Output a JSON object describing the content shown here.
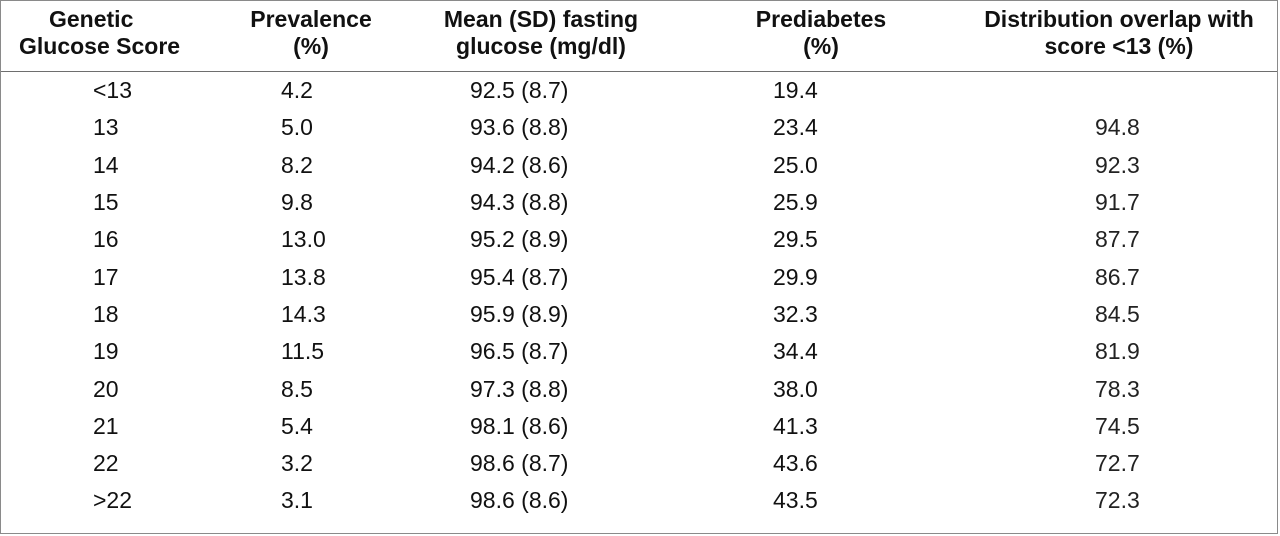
{
  "table": {
    "headers": {
      "score_line1": "Genetic",
      "score_line2": "Glucose Score",
      "prevalence_line1": "Prevalence",
      "prevalence_line2": "(%)",
      "mean_line1": "Mean (SD) fasting",
      "mean_line2": "glucose (mg/dl)",
      "prediabetes_line1": "Prediabetes",
      "prediabetes_line2": "(%)",
      "overlap_line1": "Distribution overlap with",
      "overlap_line2": "score <13 (%)"
    },
    "rows": [
      {
        "score": "<13",
        "prevalence": "4.2",
        "mean": "92.5 (8.7)",
        "prediabetes": "19.4",
        "overlap": ""
      },
      {
        "score": "13",
        "prevalence": "5.0",
        "mean": "93.6 (8.8)",
        "prediabetes": "23.4",
        "overlap": "94.8"
      },
      {
        "score": "14",
        "prevalence": "8.2",
        "mean": "94.2 (8.6)",
        "prediabetes": "25.0",
        "overlap": "92.3"
      },
      {
        "score": "15",
        "prevalence": "9.8",
        "mean": "94.3 (8.8)",
        "prediabetes": "25.9",
        "overlap": "91.7"
      },
      {
        "score": "16",
        "prevalence": "13.0",
        "mean": "95.2 (8.9)",
        "prediabetes": "29.5",
        "overlap": "87.7"
      },
      {
        "score": "17",
        "prevalence": "13.8",
        "mean": "95.4 (8.7)",
        "prediabetes": "29.9",
        "overlap": "86.7"
      },
      {
        "score": "18",
        "prevalence": "14.3",
        "mean": "95.9 (8.9)",
        "prediabetes": "32.3",
        "overlap": "84.5"
      },
      {
        "score": "19",
        "prevalence": "11.5",
        "mean": "96.5 (8.7)",
        "prediabetes": "34.4",
        "overlap": "81.9"
      },
      {
        "score": "20",
        "prevalence": "8.5",
        "mean": "97.3 (8.8)",
        "prediabetes": "38.0",
        "overlap": "78.3"
      },
      {
        "score": "21",
        "prevalence": "5.4",
        "mean": "98.1 (8.6)",
        "prediabetes": "41.3",
        "overlap": "74.5"
      },
      {
        "score": "22",
        "prevalence": "3.2",
        "mean": "98.6 (8.7)",
        "prediabetes": "43.6",
        "overlap": "72.7"
      },
      {
        "score": ">22",
        "prevalence": "3.1",
        "mean": "98.6 (8.6)",
        "prediabetes": "43.5",
        "overlap": "72.3"
      }
    ]
  }
}
